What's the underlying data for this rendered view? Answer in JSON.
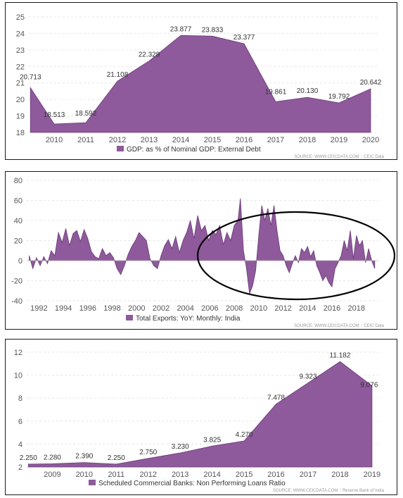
{
  "chart_data": [
    {
      "type": "area",
      "legend": "GDP: as % of Nominal GDP: External Debt",
      "source": "SOURCE: WWW.CEICDATA.COM :: CEIC Data",
      "color": "#8e5a9b",
      "ylim": [
        18,
        25
      ],
      "yticks": [
        18,
        19,
        20,
        21,
        22,
        23,
        24,
        25
      ],
      "xlim": [
        2009.2,
        2020.2
      ],
      "xticks": [
        2010,
        2011,
        2012,
        2013,
        2014,
        2015,
        2016,
        2017,
        2018,
        2019,
        2020
      ],
      "grid": true,
      "points": [
        {
          "x": 2009.25,
          "y": 20.713,
          "label": "20.713"
        },
        {
          "x": 2010.0,
          "y": 18.513,
          "label": "18.513"
        },
        {
          "x": 2011.0,
          "y": 18.592,
          "label": "18.592"
        },
        {
          "x": 2012.0,
          "y": 21.108,
          "label": "21.108"
        },
        {
          "x": 2013.0,
          "y": 22.329,
          "label": "22.329"
        },
        {
          "x": 2014.0,
          "y": 23.877,
          "label": "23.877"
        },
        {
          "x": 2015.0,
          "y": 23.833,
          "label": "23.833"
        },
        {
          "x": 2016.0,
          "y": 23.377,
          "label": "23.377"
        },
        {
          "x": 2017.0,
          "y": 19.861,
          "label": "19.861"
        },
        {
          "x": 2018.0,
          "y": 20.13,
          "label": "20.130"
        },
        {
          "x": 2019.0,
          "y": 19.792,
          "label": "19.792"
        },
        {
          "x": 2020.0,
          "y": 20.642,
          "label": "20.642"
        }
      ]
    },
    {
      "type": "area",
      "legend": "Total Exports: YoY: Monthly: India",
      "source": "SOURCE: WWW.CEICDATA.COM :: CEIC Data",
      "color": "#8e5a9b",
      "ylim": [
        -40,
        80
      ],
      "yticks": [
        -40,
        -20,
        0,
        20,
        40,
        60,
        80
      ],
      "xlim": [
        1991.0,
        2019.8
      ],
      "xticks": [
        1992,
        1994,
        1996,
        1998,
        2000,
        2002,
        2004,
        2006,
        2008,
        2010,
        2012,
        2014,
        2016,
        2018
      ],
      "grid": true,
      "annotation": "circle around 2013-2019",
      "points": [
        {
          "x": 1991.2,
          "y": 5
        },
        {
          "x": 1991.5,
          "y": -8
        },
        {
          "x": 1991.8,
          "y": 3
        },
        {
          "x": 1992.1,
          "y": -5
        },
        {
          "x": 1992.4,
          "y": 4
        },
        {
          "x": 1992.7,
          "y": -3
        },
        {
          "x": 1993.0,
          "y": 10
        },
        {
          "x": 1993.3,
          "y": 5
        },
        {
          "x": 1993.6,
          "y": 28
        },
        {
          "x": 1993.9,
          "y": 18
        },
        {
          "x": 1994.2,
          "y": 32
        },
        {
          "x": 1994.5,
          "y": 15
        },
        {
          "x": 1994.8,
          "y": 27
        },
        {
          "x": 1995.1,
          "y": 30
        },
        {
          "x": 1995.4,
          "y": 19
        },
        {
          "x": 1995.7,
          "y": 31
        },
        {
          "x": 1996.0,
          "y": 22
        },
        {
          "x": 1996.3,
          "y": 9
        },
        {
          "x": 1996.6,
          "y": 4
        },
        {
          "x": 1996.9,
          "y": 2
        },
        {
          "x": 1997.2,
          "y": 12
        },
        {
          "x": 1997.5,
          "y": 5
        },
        {
          "x": 1997.8,
          "y": 8
        },
        {
          "x": 1998.1,
          "y": 3
        },
        {
          "x": 1998.4,
          "y": -8
        },
        {
          "x": 1998.7,
          "y": -14
        },
        {
          "x": 1999.0,
          "y": -5
        },
        {
          "x": 1999.3,
          "y": 6
        },
        {
          "x": 1999.6,
          "y": 14
        },
        {
          "x": 1999.9,
          "y": 20
        },
        {
          "x": 2000.2,
          "y": 28
        },
        {
          "x": 2000.5,
          "y": 24
        },
        {
          "x": 2000.8,
          "y": 20
        },
        {
          "x": 2001.1,
          "y": 2
        },
        {
          "x": 2001.4,
          "y": -5
        },
        {
          "x": 2001.7,
          "y": -8
        },
        {
          "x": 2002.0,
          "y": 5
        },
        {
          "x": 2002.3,
          "y": 15
        },
        {
          "x": 2002.6,
          "y": 21
        },
        {
          "x": 2002.9,
          "y": 12
        },
        {
          "x": 2003.2,
          "y": 24
        },
        {
          "x": 2003.5,
          "y": 8
        },
        {
          "x": 2003.8,
          "y": 20
        },
        {
          "x": 2004.1,
          "y": 28
        },
        {
          "x": 2004.4,
          "y": 40
        },
        {
          "x": 2004.7,
          "y": 22
        },
        {
          "x": 2005.0,
          "y": 45
        },
        {
          "x": 2005.3,
          "y": 30
        },
        {
          "x": 2005.6,
          "y": 35
        },
        {
          "x": 2005.9,
          "y": 20
        },
        {
          "x": 2006.2,
          "y": 30
        },
        {
          "x": 2006.5,
          "y": 26
        },
        {
          "x": 2006.8,
          "y": 35
        },
        {
          "x": 2007.1,
          "y": 16
        },
        {
          "x": 2007.4,
          "y": 28
        },
        {
          "x": 2007.7,
          "y": 20
        },
        {
          "x": 2008.0,
          "y": 35
        },
        {
          "x": 2008.3,
          "y": 40
        },
        {
          "x": 2008.5,
          "y": 62
        },
        {
          "x": 2008.75,
          "y": 10
        },
        {
          "x": 2009.0,
          "y": -8
        },
        {
          "x": 2009.25,
          "y": -33
        },
        {
          "x": 2009.5,
          "y": -25
        },
        {
          "x": 2009.75,
          "y": -10
        },
        {
          "x": 2010.0,
          "y": 25
        },
        {
          "x": 2010.25,
          "y": 55
        },
        {
          "x": 2010.5,
          "y": 40
        },
        {
          "x": 2010.75,
          "y": 52
        },
        {
          "x": 2011.0,
          "y": 35
        },
        {
          "x": 2011.25,
          "y": 55
        },
        {
          "x": 2011.5,
          "y": 30
        },
        {
          "x": 2011.75,
          "y": 10
        },
        {
          "x": 2012.0,
          "y": 5
        },
        {
          "x": 2012.25,
          "y": -5
        },
        {
          "x": 2012.5,
          "y": -12
        },
        {
          "x": 2012.75,
          "y": -3
        },
        {
          "x": 2013.0,
          "y": 5
        },
        {
          "x": 2013.25,
          "y": -2
        },
        {
          "x": 2013.5,
          "y": 12
        },
        {
          "x": 2013.75,
          "y": 8
        },
        {
          "x": 2014.0,
          "y": 14
        },
        {
          "x": 2014.25,
          "y": 4
        },
        {
          "x": 2014.5,
          "y": 10
        },
        {
          "x": 2014.75,
          "y": -5
        },
        {
          "x": 2015.0,
          "y": -12
        },
        {
          "x": 2015.25,
          "y": -20
        },
        {
          "x": 2015.5,
          "y": -15
        },
        {
          "x": 2015.75,
          "y": -22
        },
        {
          "x": 2016.0,
          "y": -26
        },
        {
          "x": 2016.25,
          "y": -8
        },
        {
          "x": 2016.5,
          "y": -2
        },
        {
          "x": 2016.75,
          "y": 5
        },
        {
          "x": 2017.0,
          "y": 20
        },
        {
          "x": 2017.25,
          "y": 10
        },
        {
          "x": 2017.5,
          "y": 30
        },
        {
          "x": 2017.75,
          "y": 2
        },
        {
          "x": 2018.0,
          "y": 25
        },
        {
          "x": 2018.25,
          "y": 15
        },
        {
          "x": 2018.5,
          "y": 20
        },
        {
          "x": 2018.75,
          "y": -2
        },
        {
          "x": 2019.0,
          "y": 12
        },
        {
          "x": 2019.25,
          "y": 0
        },
        {
          "x": 2019.5,
          "y": -8
        }
      ]
    },
    {
      "type": "area",
      "legend": "Scheduled Commercial Banks: Non Performing Loans Ratio",
      "source": "SOURCE: WWW.CEICDATA.COM :: Reserve Bank of India",
      "color": "#8e5a9b",
      "ylim": [
        2,
        12
      ],
      "yticks": [
        2,
        4,
        6,
        8,
        10,
        12
      ],
      "xlim": [
        2008.2,
        2019.2
      ],
      "xticks": [
        2009,
        2010,
        2011,
        2012,
        2013,
        2014,
        2015,
        2016,
        2017,
        2018,
        2019
      ],
      "grid": true,
      "points": [
        {
          "x": 2008.25,
          "y": 2.25,
          "label": "2.250"
        },
        {
          "x": 2009.0,
          "y": 2.28,
          "label": "2.280"
        },
        {
          "x": 2010.0,
          "y": 2.39,
          "label": "2.390"
        },
        {
          "x": 2011.0,
          "y": 2.25,
          "label": "2.250"
        },
        {
          "x": 2012.0,
          "y": 2.75,
          "label": "2.750"
        },
        {
          "x": 2013.0,
          "y": 3.23,
          "label": "3.230"
        },
        {
          "x": 2014.0,
          "y": 3.825,
          "label": "3.825"
        },
        {
          "x": 2015.0,
          "y": 4.27,
          "label": "4.270"
        },
        {
          "x": 2016.0,
          "y": 7.478,
          "label": "7.478"
        },
        {
          "x": 2017.0,
          "y": 9.323,
          "label": "9.323"
        },
        {
          "x": 2018.0,
          "y": 11.182,
          "label": "11.182"
        },
        {
          "x": 2019.0,
          "y": 9.076,
          "label": "9.076"
        }
      ]
    }
  ]
}
